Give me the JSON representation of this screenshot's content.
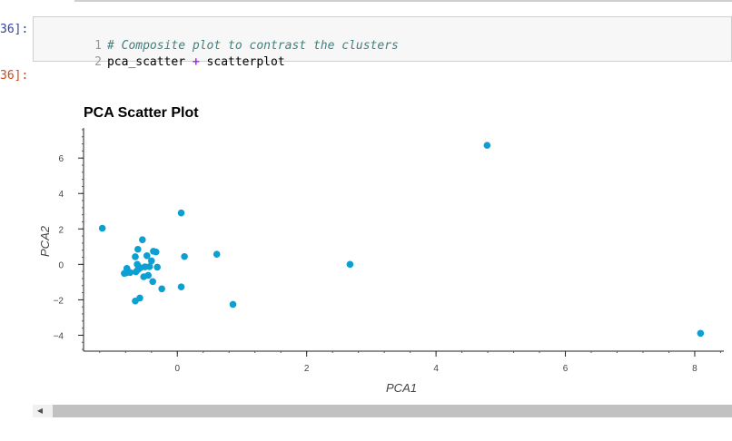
{
  "notebook": {
    "input_prompt": "36]:",
    "output_prompt": "36]:",
    "code_lines": [
      {
        "num": "1",
        "comment": "# Composite plot to contrast the clusters"
      },
      {
        "num": "2",
        "left": "pca_scatter",
        "op": "+",
        "right": "scatterplot"
      }
    ]
  },
  "colors": {
    "point": "#0c9fd1",
    "prompt_in": "#303f9f",
    "prompt_out": "#d84315",
    "comment": "#408080",
    "operator": "#aa22ff"
  },
  "chart_data": {
    "type": "scatter",
    "title": "PCA Scatter Plot",
    "xlabel": "PCA1",
    "ylabel": "PCA2",
    "xlim": [
      -1.45,
      8.45
    ],
    "ylim": [
      -4.9,
      7.7
    ],
    "xticks": [
      0,
      2,
      4,
      6,
      8
    ],
    "yticks": [
      -4,
      -2,
      0,
      2,
      4,
      6
    ],
    "grid": false,
    "points": [
      {
        "x": -1.16,
        "y": 2.04
      },
      {
        "x": 4.79,
        "y": 6.72
      },
      {
        "x": 8.09,
        "y": -3.89
      },
      {
        "x": 2.67,
        "y": 0.0
      },
      {
        "x": 0.86,
        "y": -2.26
      },
      {
        "x": 0.61,
        "y": 0.57
      },
      {
        "x": 0.06,
        "y": 2.9
      },
      {
        "x": 0.11,
        "y": 0.44
      },
      {
        "x": 0.06,
        "y": -1.27
      },
      {
        "x": -0.24,
        "y": -1.38
      },
      {
        "x": -0.31,
        "y": -0.16
      },
      {
        "x": -0.33,
        "y": 0.7
      },
      {
        "x": -0.37,
        "y": 0.74
      },
      {
        "x": -0.4,
        "y": 0.2
      },
      {
        "x": -0.38,
        "y": -0.97
      },
      {
        "x": -0.43,
        "y": -0.13
      },
      {
        "x": -0.45,
        "y": -0.62
      },
      {
        "x": -0.47,
        "y": 0.49
      },
      {
        "x": -0.5,
        "y": -0.14
      },
      {
        "x": -0.52,
        "y": -0.7
      },
      {
        "x": -0.54,
        "y": 1.39
      },
      {
        "x": -0.57,
        "y": -0.19
      },
      {
        "x": -0.58,
        "y": -1.9
      },
      {
        "x": -0.61,
        "y": -0.3
      },
      {
        "x": -0.62,
        "y": 0.0
      },
      {
        "x": -0.61,
        "y": 0.85
      },
      {
        "x": -0.64,
        "y": -0.42
      },
      {
        "x": -0.65,
        "y": -2.07
      },
      {
        "x": -0.65,
        "y": 0.43
      },
      {
        "x": -0.73,
        "y": -0.46
      },
      {
        "x": -0.78,
        "y": -0.23
      },
      {
        "x": -0.79,
        "y": -0.48
      },
      {
        "x": -0.82,
        "y": -0.51
      }
    ]
  }
}
